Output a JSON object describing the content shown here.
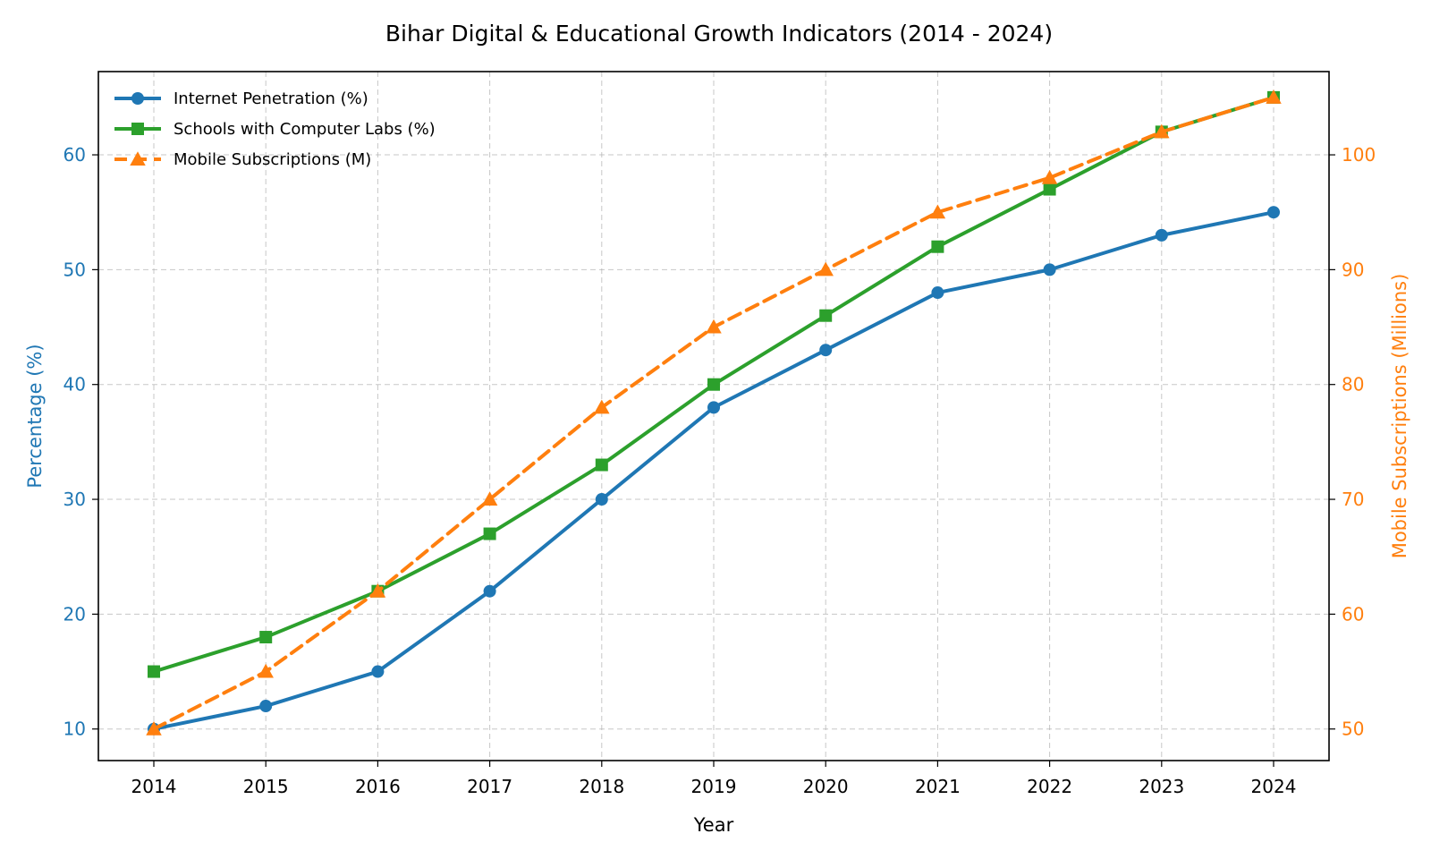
{
  "chart_data": {
    "type": "line",
    "title": "Bihar Digital & Educational Growth Indicators (2014 - 2024)",
    "xlabel": "Year",
    "ylabel_left": "Percentage (%)",
    "ylabel_right": "Mobile Subscriptions (Millions)",
    "categories": [
      "2014",
      "2015",
      "2016",
      "2017",
      "2018",
      "2019",
      "2020",
      "2021",
      "2022",
      "2023",
      "2024"
    ],
    "y_left": {
      "range": [
        7.25,
        67.25
      ],
      "ticks": [
        10,
        20,
        30,
        40,
        50,
        60
      ],
      "color": "#1f77b4"
    },
    "y_right": {
      "range": [
        47.25,
        107.25
      ],
      "ticks": [
        50,
        60,
        70,
        80,
        90,
        100
      ],
      "color": "#ff7f0e"
    },
    "grid": true,
    "legend_position": "upper-left",
    "series": [
      {
        "name": "Internet Penetration (%)",
        "axis": "left",
        "color": "#1f77b4",
        "marker": "circle",
        "line_style": "solid",
        "values": [
          10,
          12,
          15,
          22,
          30,
          38,
          43,
          48,
          50,
          53,
          55
        ]
      },
      {
        "name": "Schools with Computer Labs (%)",
        "axis": "left",
        "color": "#2ca02c",
        "marker": "square",
        "line_style": "solid",
        "values": [
          15,
          18,
          22,
          27,
          33,
          40,
          46,
          52,
          57,
          62,
          65
        ]
      },
      {
        "name": "Mobile Subscriptions (M)",
        "axis": "right",
        "color": "#ff7f0e",
        "marker": "triangle",
        "line_style": "dashed",
        "values": [
          50,
          55,
          62,
          70,
          78,
          85,
          90,
          95,
          98,
          102,
          105
        ]
      }
    ]
  }
}
